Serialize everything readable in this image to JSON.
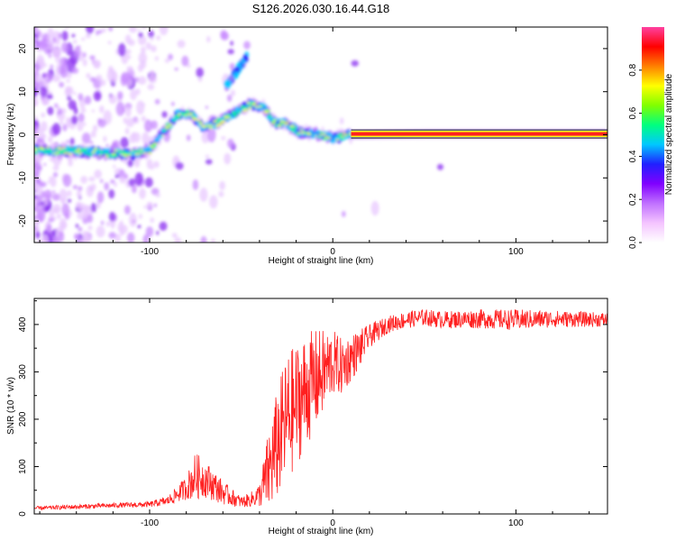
{
  "title": "S126.2026.030.16.44.G18",
  "chart_data": [
    {
      "type": "heatmap",
      "xlabel": "Height of straight line (km)",
      "ylabel": "Frequency (Hz)",
      "xlim": [
        -163,
        150
      ],
      "ylim": [
        -25,
        25
      ],
      "xticks": [
        -100,
        0,
        100
      ],
      "yticks": [
        -20,
        -10,
        0,
        10,
        20
      ],
      "colorbar": {
        "label": "Normalized spectral amplitude",
        "range": [
          0,
          1
        ],
        "ticks": [
          "0.0",
          "0.2",
          "0.4",
          "0.6",
          "0.8"
        ],
        "colors": [
          "#ffffff",
          "#f4c4ff",
          "#c070ff",
          "#8000ff",
          "#2020ff",
          "#00c8ff",
          "#00ff80",
          "#80ff00",
          "#ffff00",
          "#ff8000",
          "#ff0000",
          "#ff40a0"
        ]
      },
      "ridge": [
        {
          "x": -163,
          "f": -3.5
        },
        {
          "x": -140,
          "f": -3.8
        },
        {
          "x": -120,
          "f": -4.3
        },
        {
          "x": -110,
          "f": -4.5
        },
        {
          "x": -100,
          "f": -3.5
        },
        {
          "x": -92,
          "f": 1.0
        },
        {
          "x": -85,
          "f": 4.5
        },
        {
          "x": -78,
          "f": 5.0
        },
        {
          "x": -70,
          "f": 1.5
        },
        {
          "x": -62,
          "f": 3.0
        },
        {
          "x": -52,
          "f": 5.5
        },
        {
          "x": -45,
          "f": 7.0
        },
        {
          "x": -38,
          "f": 6.5
        },
        {
          "x": -32,
          "f": 3.0
        },
        {
          "x": -25,
          "f": 2.5
        },
        {
          "x": -18,
          "f": 0.5
        },
        {
          "x": -10,
          "f": 0.3
        },
        {
          "x": 0,
          "f": -0.8
        },
        {
          "x": 10,
          "f": 0.0
        },
        {
          "x": 50,
          "f": 0.2
        },
        {
          "x": 100,
          "f": 0.2
        },
        {
          "x": 150,
          "f": 0.2
        }
      ],
      "secondary_ridge": [
        {
          "x": -58,
          "f": 11
        },
        {
          "x": -52,
          "f": 15
        },
        {
          "x": -47,
          "f": 18
        }
      ]
    },
    {
      "type": "line",
      "xlabel": "Height of straight line (km)",
      "ylabel": "SNR (10 * v/v)",
      "xlim": [
        -163,
        150
      ],
      "ylim": [
        0,
        455
      ],
      "xticks": [
        -100,
        0,
        100
      ],
      "yticks": [
        0,
        100,
        200,
        300,
        400
      ],
      "series": [
        {
          "name": "SNR",
          "color": "#ff2020",
          "x": [
            -163,
            -140,
            -120,
            -100,
            -90,
            -80,
            -75,
            -70,
            -60,
            -50,
            -45,
            -40,
            -35,
            -30,
            -25,
            -20,
            -15,
            -10,
            -5,
            0,
            5,
            10,
            15,
            20,
            30,
            40,
            50,
            60,
            80,
            100,
            120,
            150
          ],
          "values": [
            12,
            15,
            18,
            20,
            28,
            55,
            80,
            75,
            45,
            25,
            30,
            40,
            90,
            150,
            200,
            230,
            260,
            280,
            300,
            320,
            310,
            330,
            350,
            375,
            400,
            410,
            415,
            410,
            412,
            410,
            412,
            410
          ],
          "noise_amplitude": [
            4,
            5,
            5,
            6,
            10,
            25,
            50,
            40,
            25,
            12,
            15,
            25,
            90,
            120,
            140,
            130,
            120,
            110,
            90,
            70,
            60,
            50,
            40,
            25,
            18,
            18,
            18,
            18,
            20,
            22,
            18,
            15
          ]
        }
      ]
    }
  ]
}
